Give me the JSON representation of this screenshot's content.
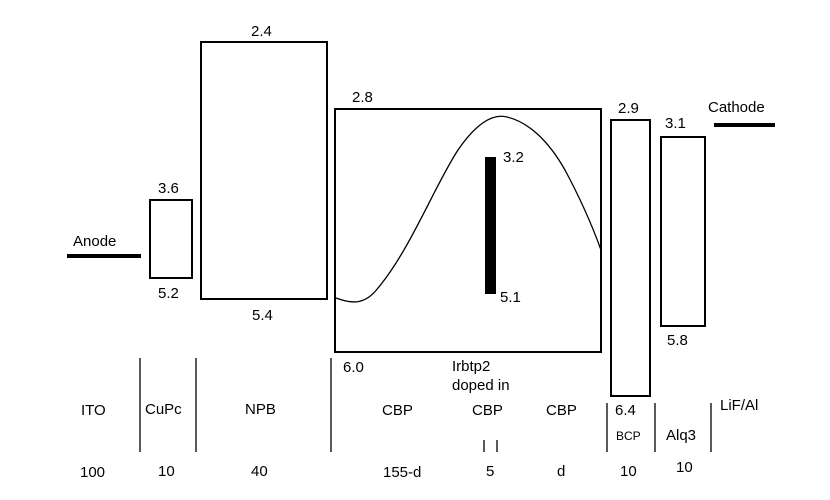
{
  "electrodes": {
    "anode": "Anode",
    "cathode": "Cathode"
  },
  "levels": {
    "cupc_lumo": "3.6",
    "cupc_homo": "5.2",
    "npb_lumo": "2.4",
    "npb_homo": "5.4",
    "cbp_lumo": "2.8",
    "cbp_homo": "6.0",
    "dopant_lumo": "3.2",
    "dopant_homo": "5.1",
    "bcp_lumo": "2.9",
    "bcp_homo": "6.4",
    "alq3_lumo": "3.1",
    "alq3_homo": "5.8"
  },
  "dopant": {
    "line1": "Irbtp2",
    "line2": "doped in"
  },
  "layers": [
    {
      "name": "ITO",
      "thickness": "100"
    },
    {
      "name": "CuPc",
      "thickness": "10"
    },
    {
      "name": "NPB",
      "thickness": "40"
    },
    {
      "name": "CBP",
      "thickness": "155-d"
    },
    {
      "name": "CBP",
      "thickness": "5"
    },
    {
      "name": "CBP",
      "thickness": "d"
    },
    {
      "name": "BCP",
      "thickness": "10"
    },
    {
      "name": "Alq3",
      "thickness": "10"
    },
    {
      "name": "LiF/Al",
      "thickness": ""
    }
  ]
}
